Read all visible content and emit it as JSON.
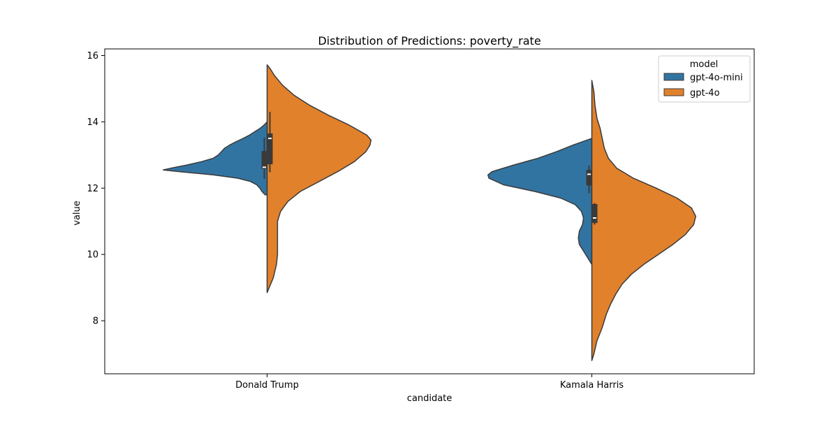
{
  "chart_data": {
    "type": "violin",
    "title": "Distribution of Predictions: poverty_rate",
    "xlabel": "candidate",
    "ylabel": "value",
    "ylim": [
      6.4,
      16.2
    ],
    "yticks": [
      8,
      10,
      12,
      14,
      16
    ],
    "categories": [
      "Donald Trump",
      "Kamala Harris"
    ],
    "legend": {
      "title": "model",
      "placement": "top-right",
      "entries": [
        "gpt-4o-mini",
        "gpt-4o"
      ]
    },
    "colors": {
      "gpt-4o-mini": "#3274a1",
      "gpt-4o": "#e1812c",
      "box": "#3a3a3a",
      "outline": "#3a3a3a"
    },
    "series": [
      {
        "name": "gpt-4o-mini",
        "side": "left",
        "violins": [
          {
            "category": "Donald Trump",
            "density_scale": 0.8,
            "density": [
              [
                11.8,
                0.02
              ],
              [
                11.9,
                0.05
              ],
              [
                12.0,
                0.07
              ],
              [
                12.1,
                0.1
              ],
              [
                12.2,
                0.16
              ],
              [
                12.3,
                0.28
              ],
              [
                12.4,
                0.52
              ],
              [
                12.5,
                0.85
              ],
              [
                12.55,
                1.0
              ],
              [
                12.6,
                0.93
              ],
              [
                12.7,
                0.77
              ],
              [
                12.8,
                0.63
              ],
              [
                12.9,
                0.52
              ],
              [
                13.0,
                0.47
              ],
              [
                13.1,
                0.44
              ],
              [
                13.2,
                0.41
              ],
              [
                13.3,
                0.36
              ],
              [
                13.4,
                0.3
              ],
              [
                13.5,
                0.23
              ],
              [
                13.6,
                0.17
              ],
              [
                13.7,
                0.12
              ],
              [
                13.8,
                0.07
              ],
              [
                13.9,
                0.03
              ],
              [
                14.0,
                0.0
              ]
            ],
            "box": {
              "q1": 12.58,
              "median": 12.63,
              "q3": 13.12,
              "whisker_low": 12.28,
              "whisker_high": 13.52
            }
          },
          {
            "category": "Kamala Harris",
            "density_scale": 0.8,
            "density": [
              [
                9.7,
                0.0
              ],
              [
                9.8,
                0.02
              ],
              [
                9.95,
                0.05
              ],
              [
                10.1,
                0.08
              ],
              [
                10.3,
                0.12
              ],
              [
                10.5,
                0.13
              ],
              [
                10.7,
                0.12
              ],
              [
                10.9,
                0.09
              ],
              [
                11.1,
                0.08
              ],
              [
                11.3,
                0.1
              ],
              [
                11.5,
                0.16
              ],
              [
                11.7,
                0.3
              ],
              [
                11.9,
                0.55
              ],
              [
                12.1,
                0.85
              ],
              [
                12.3,
                0.99
              ],
              [
                12.4,
                1.0
              ],
              [
                12.5,
                0.96
              ],
              [
                12.7,
                0.75
              ],
              [
                12.9,
                0.52
              ],
              [
                13.1,
                0.34
              ],
              [
                13.3,
                0.18
              ],
              [
                13.5,
                0.0
              ]
            ],
            "box": {
              "q1": 12.08,
              "median": 12.42,
              "q3": 12.55,
              "whisker_low": 11.85,
              "whisker_high": 12.68
            }
          }
        ]
      },
      {
        "name": "gpt-4o",
        "side": "right",
        "violins": [
          {
            "category": "Donald Trump",
            "density_scale": 0.8,
            "density": [
              [
                8.85,
                0.0
              ],
              [
                9.0,
                0.02
              ],
              [
                9.3,
                0.06
              ],
              [
                9.7,
                0.09
              ],
              [
                10.0,
                0.1
              ],
              [
                10.3,
                0.1
              ],
              [
                10.7,
                0.1
              ],
              [
                11.0,
                0.1
              ],
              [
                11.3,
                0.13
              ],
              [
                11.6,
                0.2
              ],
              [
                11.9,
                0.32
              ],
              [
                12.2,
                0.5
              ],
              [
                12.5,
                0.68
              ],
              [
                12.8,
                0.84
              ],
              [
                13.1,
                0.95
              ],
              [
                13.3,
                0.99
              ],
              [
                13.45,
                1.0
              ],
              [
                13.6,
                0.96
              ],
              [
                13.9,
                0.79
              ],
              [
                14.2,
                0.59
              ],
              [
                14.5,
                0.41
              ],
              [
                14.8,
                0.26
              ],
              [
                15.1,
                0.15
              ],
              [
                15.4,
                0.07
              ],
              [
                15.6,
                0.03
              ],
              [
                15.72,
                0.0
              ]
            ],
            "box": {
              "q1": 12.72,
              "median": 13.5,
              "q3": 13.65,
              "whisker_low": 12.48,
              "whisker_high": 14.3
            }
          },
          {
            "category": "Kamala Harris",
            "density_scale": 0.8,
            "density": [
              [
                6.8,
                0.0
              ],
              [
                7.0,
                0.02
              ],
              [
                7.4,
                0.05
              ],
              [
                7.8,
                0.1
              ],
              [
                8.2,
                0.14
              ],
              [
                8.5,
                0.18
              ],
              [
                8.8,
                0.23
              ],
              [
                9.1,
                0.29
              ],
              [
                9.4,
                0.38
              ],
              [
                9.7,
                0.5
              ],
              [
                10.0,
                0.64
              ],
              [
                10.3,
                0.78
              ],
              [
                10.6,
                0.9
              ],
              [
                10.9,
                0.98
              ],
              [
                11.15,
                1.0
              ],
              [
                11.4,
                0.96
              ],
              [
                11.7,
                0.82
              ],
              [
                12.0,
                0.62
              ],
              [
                12.3,
                0.4
              ],
              [
                12.6,
                0.24
              ],
              [
                12.9,
                0.16
              ],
              [
                13.2,
                0.12
              ],
              [
                13.5,
                0.1
              ],
              [
                13.8,
                0.08
              ],
              [
                14.1,
                0.05
              ],
              [
                14.5,
                0.03
              ],
              [
                14.9,
                0.02
              ],
              [
                15.25,
                0.0
              ]
            ],
            "box": {
              "q1": 10.95,
              "median": 11.1,
              "q3": 11.52,
              "whisker_low": 10.9,
              "whisker_high": 11.55
            }
          }
        ]
      }
    ]
  }
}
